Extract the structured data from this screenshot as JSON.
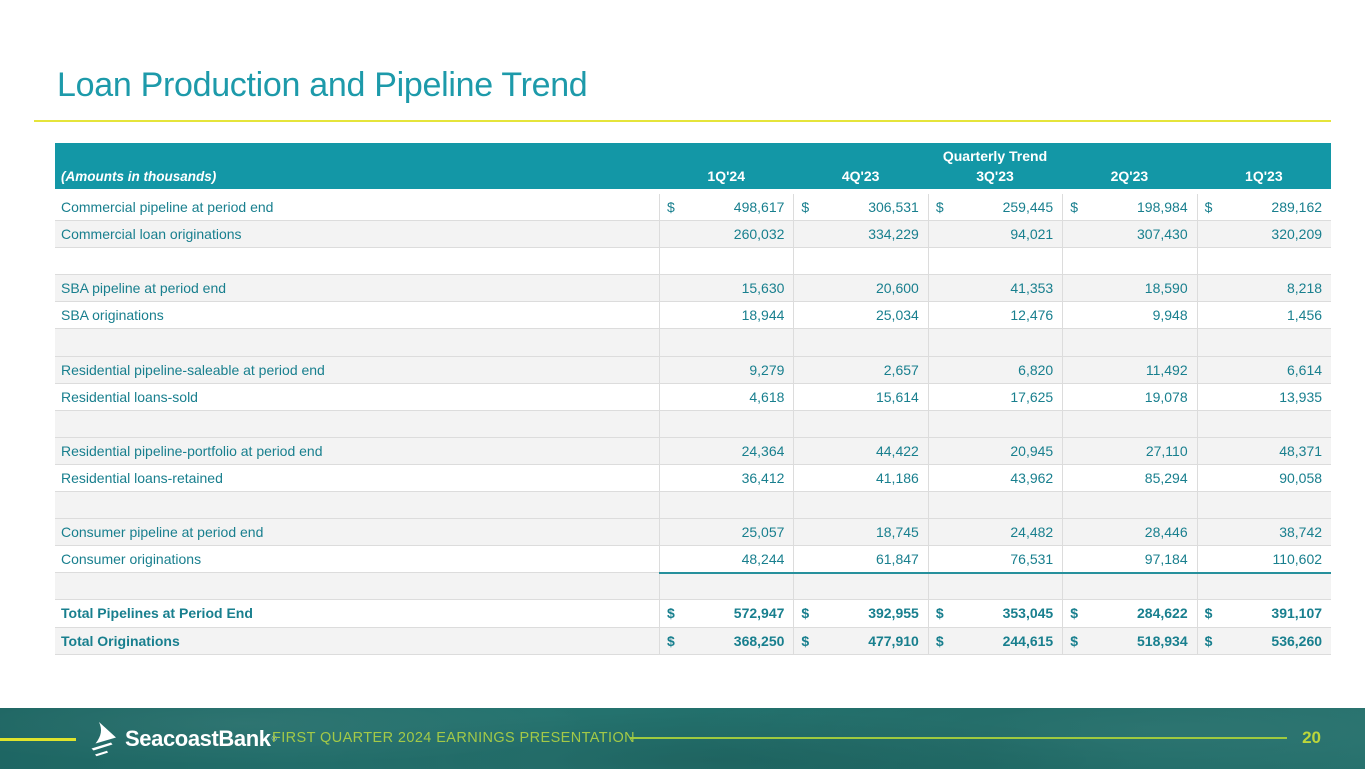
{
  "slide": {
    "title": "Loan Production and Pipeline Trend"
  },
  "table": {
    "group_header": "Quarterly Trend",
    "corner_label": "(Amounts in thousands)",
    "currency_symbol": "$",
    "columns": [
      "1Q'24",
      "4Q'23",
      "3Q'23",
      "2Q'23",
      "1Q'23"
    ],
    "rows": [
      {
        "label": "Commercial pipeline at period end",
        "dollar": true,
        "bold": false,
        "shade": false,
        "spacer": false,
        "teal_rule": false,
        "values": [
          "498,617",
          "306,531",
          "259,445",
          "198,984",
          "289,162"
        ]
      },
      {
        "label": "Commercial loan originations",
        "dollar": false,
        "bold": false,
        "shade": true,
        "spacer": false,
        "teal_rule": false,
        "values": [
          "260,032",
          "334,229",
          "94,021",
          "307,430",
          "320,209"
        ]
      },
      {
        "label": "",
        "dollar": false,
        "bold": false,
        "shade": false,
        "spacer": true,
        "teal_rule": false,
        "values": [
          "",
          "",
          "",
          "",
          ""
        ]
      },
      {
        "label": "SBA pipeline at period end",
        "dollar": false,
        "bold": false,
        "shade": true,
        "spacer": false,
        "teal_rule": false,
        "values": [
          "15,630",
          "20,600",
          "41,353",
          "18,590",
          "8,218"
        ]
      },
      {
        "label": "SBA originations",
        "dollar": false,
        "bold": false,
        "shade": false,
        "spacer": false,
        "teal_rule": false,
        "values": [
          "18,944",
          "25,034",
          "12,476",
          "9,948",
          "1,456"
        ]
      },
      {
        "label": "",
        "dollar": false,
        "bold": false,
        "shade": true,
        "spacer": true,
        "teal_rule": false,
        "values": [
          "",
          "",
          "",
          "",
          ""
        ]
      },
      {
        "label": "Residential pipeline-saleable at period end",
        "dollar": false,
        "bold": false,
        "shade": true,
        "spacer": false,
        "teal_rule": false,
        "values": [
          "9,279",
          "2,657",
          "6,820",
          "11,492",
          "6,614"
        ]
      },
      {
        "label": "Residential loans-sold",
        "dollar": false,
        "bold": false,
        "shade": false,
        "spacer": false,
        "teal_rule": false,
        "values": [
          "4,618",
          "15,614",
          "17,625",
          "19,078",
          "13,935"
        ]
      },
      {
        "label": "",
        "dollar": false,
        "bold": false,
        "shade": true,
        "spacer": true,
        "teal_rule": false,
        "values": [
          "",
          "",
          "",
          "",
          ""
        ]
      },
      {
        "label": "Residential pipeline-portfolio at period end",
        "dollar": false,
        "bold": false,
        "shade": true,
        "spacer": false,
        "teal_rule": false,
        "values": [
          "24,364",
          "44,422",
          "20,945",
          "27,110",
          "48,371"
        ]
      },
      {
        "label": "Residential loans-retained",
        "dollar": false,
        "bold": false,
        "shade": false,
        "spacer": false,
        "teal_rule": false,
        "values": [
          "36,412",
          "41,186",
          "43,962",
          "85,294",
          "90,058"
        ]
      },
      {
        "label": "",
        "dollar": false,
        "bold": false,
        "shade": true,
        "spacer": true,
        "teal_rule": false,
        "values": [
          "",
          "",
          "",
          "",
          ""
        ]
      },
      {
        "label": "Consumer pipeline at period end",
        "dollar": false,
        "bold": false,
        "shade": true,
        "spacer": false,
        "teal_rule": false,
        "values": [
          "25,057",
          "18,745",
          "24,482",
          "28,446",
          "38,742"
        ]
      },
      {
        "label": "Consumer originations",
        "dollar": false,
        "bold": false,
        "shade": false,
        "spacer": false,
        "teal_rule": true,
        "values": [
          "48,244",
          "61,847",
          "76,531",
          "97,184",
          "110,602"
        ]
      },
      {
        "label": "",
        "dollar": false,
        "bold": false,
        "shade": true,
        "spacer": true,
        "teal_rule": false,
        "values": [
          "",
          "",
          "",
          "",
          ""
        ]
      },
      {
        "label": "Total Pipelines at Period End",
        "dollar": true,
        "bold": true,
        "shade": false,
        "spacer": false,
        "teal_rule": false,
        "values": [
          "572,947",
          "392,955",
          "353,045",
          "284,622",
          "391,107"
        ]
      },
      {
        "label": "Total Originations",
        "dollar": true,
        "bold": true,
        "shade": true,
        "spacer": false,
        "teal_rule": false,
        "values": [
          "368,250",
          "477,910",
          "244,615",
          "518,934",
          "536,260"
        ]
      }
    ]
  },
  "footer": {
    "brand": "SeacoastBank",
    "registered_mark": "®",
    "tagline": "FIRST QUARTER 2024 EARNINGS PRESENTATION",
    "page_number": "20"
  },
  "colors": {
    "header_teal": "#1397a6",
    "title_teal": "#1d9aaa",
    "text_teal": "#187f8e",
    "rule_yellow": "#e5e43b",
    "consumer_rule_teal": "#26909c",
    "footer_green": "#216b68",
    "footer_lime": "#a3c947",
    "page_number_lime": "#bcd63b",
    "row_shade": "#f3f3f3"
  }
}
